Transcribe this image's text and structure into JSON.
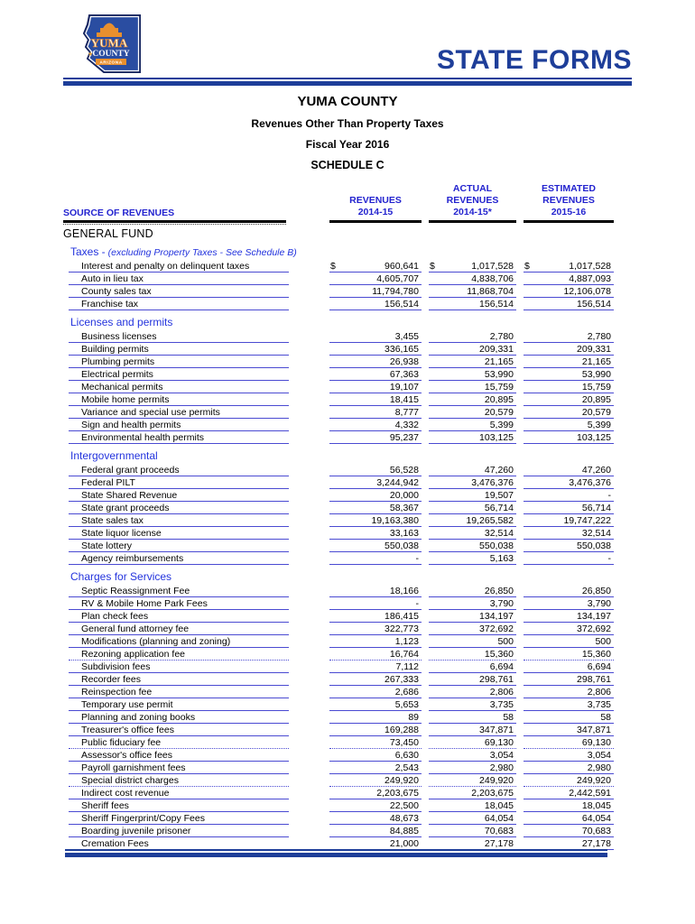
{
  "colors": {
    "navy": "#1e3e99",
    "blue": "#2323cf",
    "underline_blue": "#4a4ad2",
    "orange": "#e88f2e"
  },
  "brand": {
    "title": "STATE FORMS",
    "logo": {
      "line1": "YUMA",
      "line2": "COUNTY",
      "line3": "ARIZONA"
    }
  },
  "doc_header": {
    "county": "YUMA COUNTY",
    "subtitle": "Revenues Other Than Property Taxes",
    "fiscal_year": "Fiscal Year 2016",
    "schedule": "SCHEDULE C"
  },
  "table": {
    "source_col_header": "SOURCE OF REVENUES",
    "currency_symbol": "$",
    "columns": [
      {
        "lines": [
          "REVENUES",
          "2014-15"
        ]
      },
      {
        "lines": [
          "ACTUAL",
          "REVENUES",
          "2014-15*"
        ]
      },
      {
        "lines": [
          "ESTIMATED",
          "REVENUES",
          "2015-16"
        ]
      }
    ],
    "fund": "GENERAL FUND",
    "sections": [
      {
        "title": "Taxes -",
        "note": "(excluding Property Taxes - See Schedule B)",
        "rows": [
          {
            "label": "Interest and penalty on delinquent taxes",
            "values": [
              "960,641",
              "1,017,528",
              "1,017,528"
            ],
            "currency": true
          },
          {
            "label": "Auto in lieu tax",
            "values": [
              "4,605,707",
              "4,838,706",
              "4,887,093"
            ]
          },
          {
            "label": "County sales tax",
            "values": [
              "11,794,780",
              "11,868,704",
              "12,106,078"
            ]
          },
          {
            "label": "Franchise tax",
            "values": [
              "156,514",
              "156,514",
              "156,514"
            ]
          }
        ]
      },
      {
        "title": "Licenses and permits",
        "note": "",
        "rows": [
          {
            "label": "Business licenses",
            "values": [
              "3,455",
              "2,780",
              "2,780"
            ]
          },
          {
            "label": "Building permits",
            "values": [
              "336,165",
              "209,331",
              "209,331"
            ]
          },
          {
            "label": "Plumbing permits",
            "values": [
              "26,938",
              "21,165",
              "21,165"
            ]
          },
          {
            "label": "Electrical permits",
            "values": [
              "67,363",
              "53,990",
              "53,990"
            ]
          },
          {
            "label": "Mechanical permits",
            "values": [
              "19,107",
              "15,759",
              "15,759"
            ]
          },
          {
            "label": "Mobile home permits",
            "values": [
              "18,415",
              "20,895",
              "20,895"
            ]
          },
          {
            "label": "Variance and special use permits",
            "values": [
              "8,777",
              "20,579",
              "20,579"
            ]
          },
          {
            "label": "Sign and health permits",
            "values": [
              "4,332",
              "5,399",
              "5,399"
            ]
          },
          {
            "label": "Environmental health permits",
            "values": [
              "95,237",
              "103,125",
              "103,125"
            ]
          }
        ]
      },
      {
        "title": "Intergovernmental",
        "note": "",
        "rows": [
          {
            "label": "Federal grant proceeds",
            "values": [
              "56,528",
              "47,260",
              "47,260"
            ]
          },
          {
            "label": "Federal PILT",
            "values": [
              "3,244,942",
              "3,476,376",
              "3,476,376"
            ]
          },
          {
            "label": "State Shared Revenue",
            "values": [
              "20,000",
              "19,507",
              "-"
            ]
          },
          {
            "label": "State grant proceeds",
            "values": [
              "58,367",
              "56,714",
              "56,714"
            ]
          },
          {
            "label": "State sales tax",
            "values": [
              "19,163,380",
              "19,265,582",
              "19,747,222"
            ]
          },
          {
            "label": "State liquor license",
            "values": [
              "33,163",
              "32,514",
              "32,514"
            ]
          },
          {
            "label": "State lottery",
            "values": [
              "550,038",
              "550,038",
              "550,038"
            ]
          },
          {
            "label": "Agency reimbursements",
            "values": [
              "-",
              "5,163",
              "-"
            ]
          }
        ]
      },
      {
        "title": "Charges for Services",
        "note": "",
        "rows": [
          {
            "label": "Septic Reassignment Fee",
            "values": [
              "18,166",
              "26,850",
              "26,850"
            ]
          },
          {
            "label": "RV & Mobile Home Park Fees",
            "values": [
              "-",
              "3,790",
              "3,790"
            ]
          },
          {
            "label": "Plan check fees",
            "values": [
              "186,415",
              "134,197",
              "134,197"
            ]
          },
          {
            "label": "General fund attorney fee",
            "values": [
              "322,773",
              "372,692",
              "372,692"
            ]
          },
          {
            "label": "Modifications (planning and zoning)",
            "values": [
              "1,123",
              "500",
              "500"
            ]
          },
          {
            "label": "Rezoning application fee",
            "values": [
              "16,764",
              "15,360",
              "15,360"
            ],
            "dotted": true
          },
          {
            "label": "Subdivision fees",
            "values": [
              "7,112",
              "6,694",
              "6,694"
            ]
          },
          {
            "label": "Recorder fees",
            "values": [
              "267,333",
              "298,761",
              "298,761"
            ]
          },
          {
            "label": "Reinspection fee",
            "values": [
              "2,686",
              "2,806",
              "2,806"
            ]
          },
          {
            "label": "Temporary use permit",
            "values": [
              "5,653",
              "3,735",
              "3,735"
            ]
          },
          {
            "label": "Planning and zoning books",
            "values": [
              "89",
              "58",
              "58"
            ]
          },
          {
            "label": "Treasurer's office fees",
            "values": [
              "169,288",
              "347,871",
              "347,871"
            ]
          },
          {
            "label": "Public fiduciary fee",
            "values": [
              "73,450",
              "69,130",
              "69,130"
            ],
            "dotted": true
          },
          {
            "label": "Assessor's office fees",
            "values": [
              "6,630",
              "3,054",
              "3,054"
            ]
          },
          {
            "label": "Payroll garnishment fees",
            "values": [
              "2,543",
              "2,980",
              "2,980"
            ]
          },
          {
            "label": "Special district charges",
            "values": [
              "249,920",
              "249,920",
              "249,920"
            ],
            "dotted": true
          },
          {
            "label": "Indirect cost revenue",
            "values": [
              "2,203,675",
              "2,203,675",
              "2,442,591"
            ]
          },
          {
            "label": "Sheriff fees",
            "values": [
              "22,500",
              "18,045",
              "18,045"
            ]
          },
          {
            "label": "Sheriff Fingerprint/Copy Fees",
            "values": [
              "48,673",
              "64,054",
              "64,054"
            ]
          },
          {
            "label": "Boarding juvenile prisoner",
            "values": [
              "84,885",
              "70,683",
              "70,683"
            ]
          },
          {
            "label": "Cremation Fees",
            "values": [
              "21,000",
              "27,178",
              "27,178"
            ]
          }
        ]
      }
    ]
  }
}
